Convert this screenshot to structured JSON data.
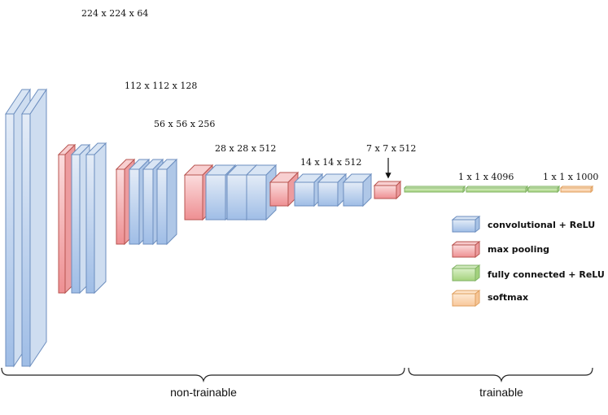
{
  "dimensions": {
    "conv1": "224 x 224 x 64",
    "conv2": "112 x 112 x 128",
    "conv3": "56 x 56 x 256",
    "conv4": "28 x 28 x 512",
    "conv5": "14 x 14 x 512",
    "pool5": "7 x 7 x 512",
    "fc": "1 x 1 x 4096",
    "softmax": "1 x 1 x 1000"
  },
  "legend": {
    "conv": "convolutional + ReLU",
    "pool": "max pooling",
    "fc": "fully connected + ReLU",
    "softmax": "softmax"
  },
  "groups": {
    "non_trainable": "non-trainable",
    "trainable": "trainable"
  },
  "colors": {
    "conv_fill": "#b7cde9",
    "conv_stroke": "#6c8ebf",
    "pool_fill": "#f2a7a9",
    "pool_stroke": "#b85450",
    "fc_fill": "#b9dc9c",
    "fc_stroke": "#82b366",
    "softmax_fill": "#fbd7b0",
    "softmax_stroke": "#e0a060"
  },
  "blocks": [
    {
      "type": "conv"
    },
    {
      "type": "conv"
    },
    {
      "type": "pool"
    },
    {
      "type": "conv"
    },
    {
      "type": "conv"
    },
    {
      "type": "pool"
    },
    {
      "type": "conv"
    },
    {
      "type": "conv"
    },
    {
      "type": "conv"
    },
    {
      "type": "pool"
    },
    {
      "type": "conv"
    },
    {
      "type": "conv"
    },
    {
      "type": "conv"
    },
    {
      "type": "pool"
    },
    {
      "type": "conv"
    },
    {
      "type": "conv"
    },
    {
      "type": "conv"
    },
    {
      "type": "pool"
    },
    {
      "type": "fc"
    },
    {
      "type": "fc"
    },
    {
      "type": "fc"
    },
    {
      "type": "softmax"
    }
  ]
}
